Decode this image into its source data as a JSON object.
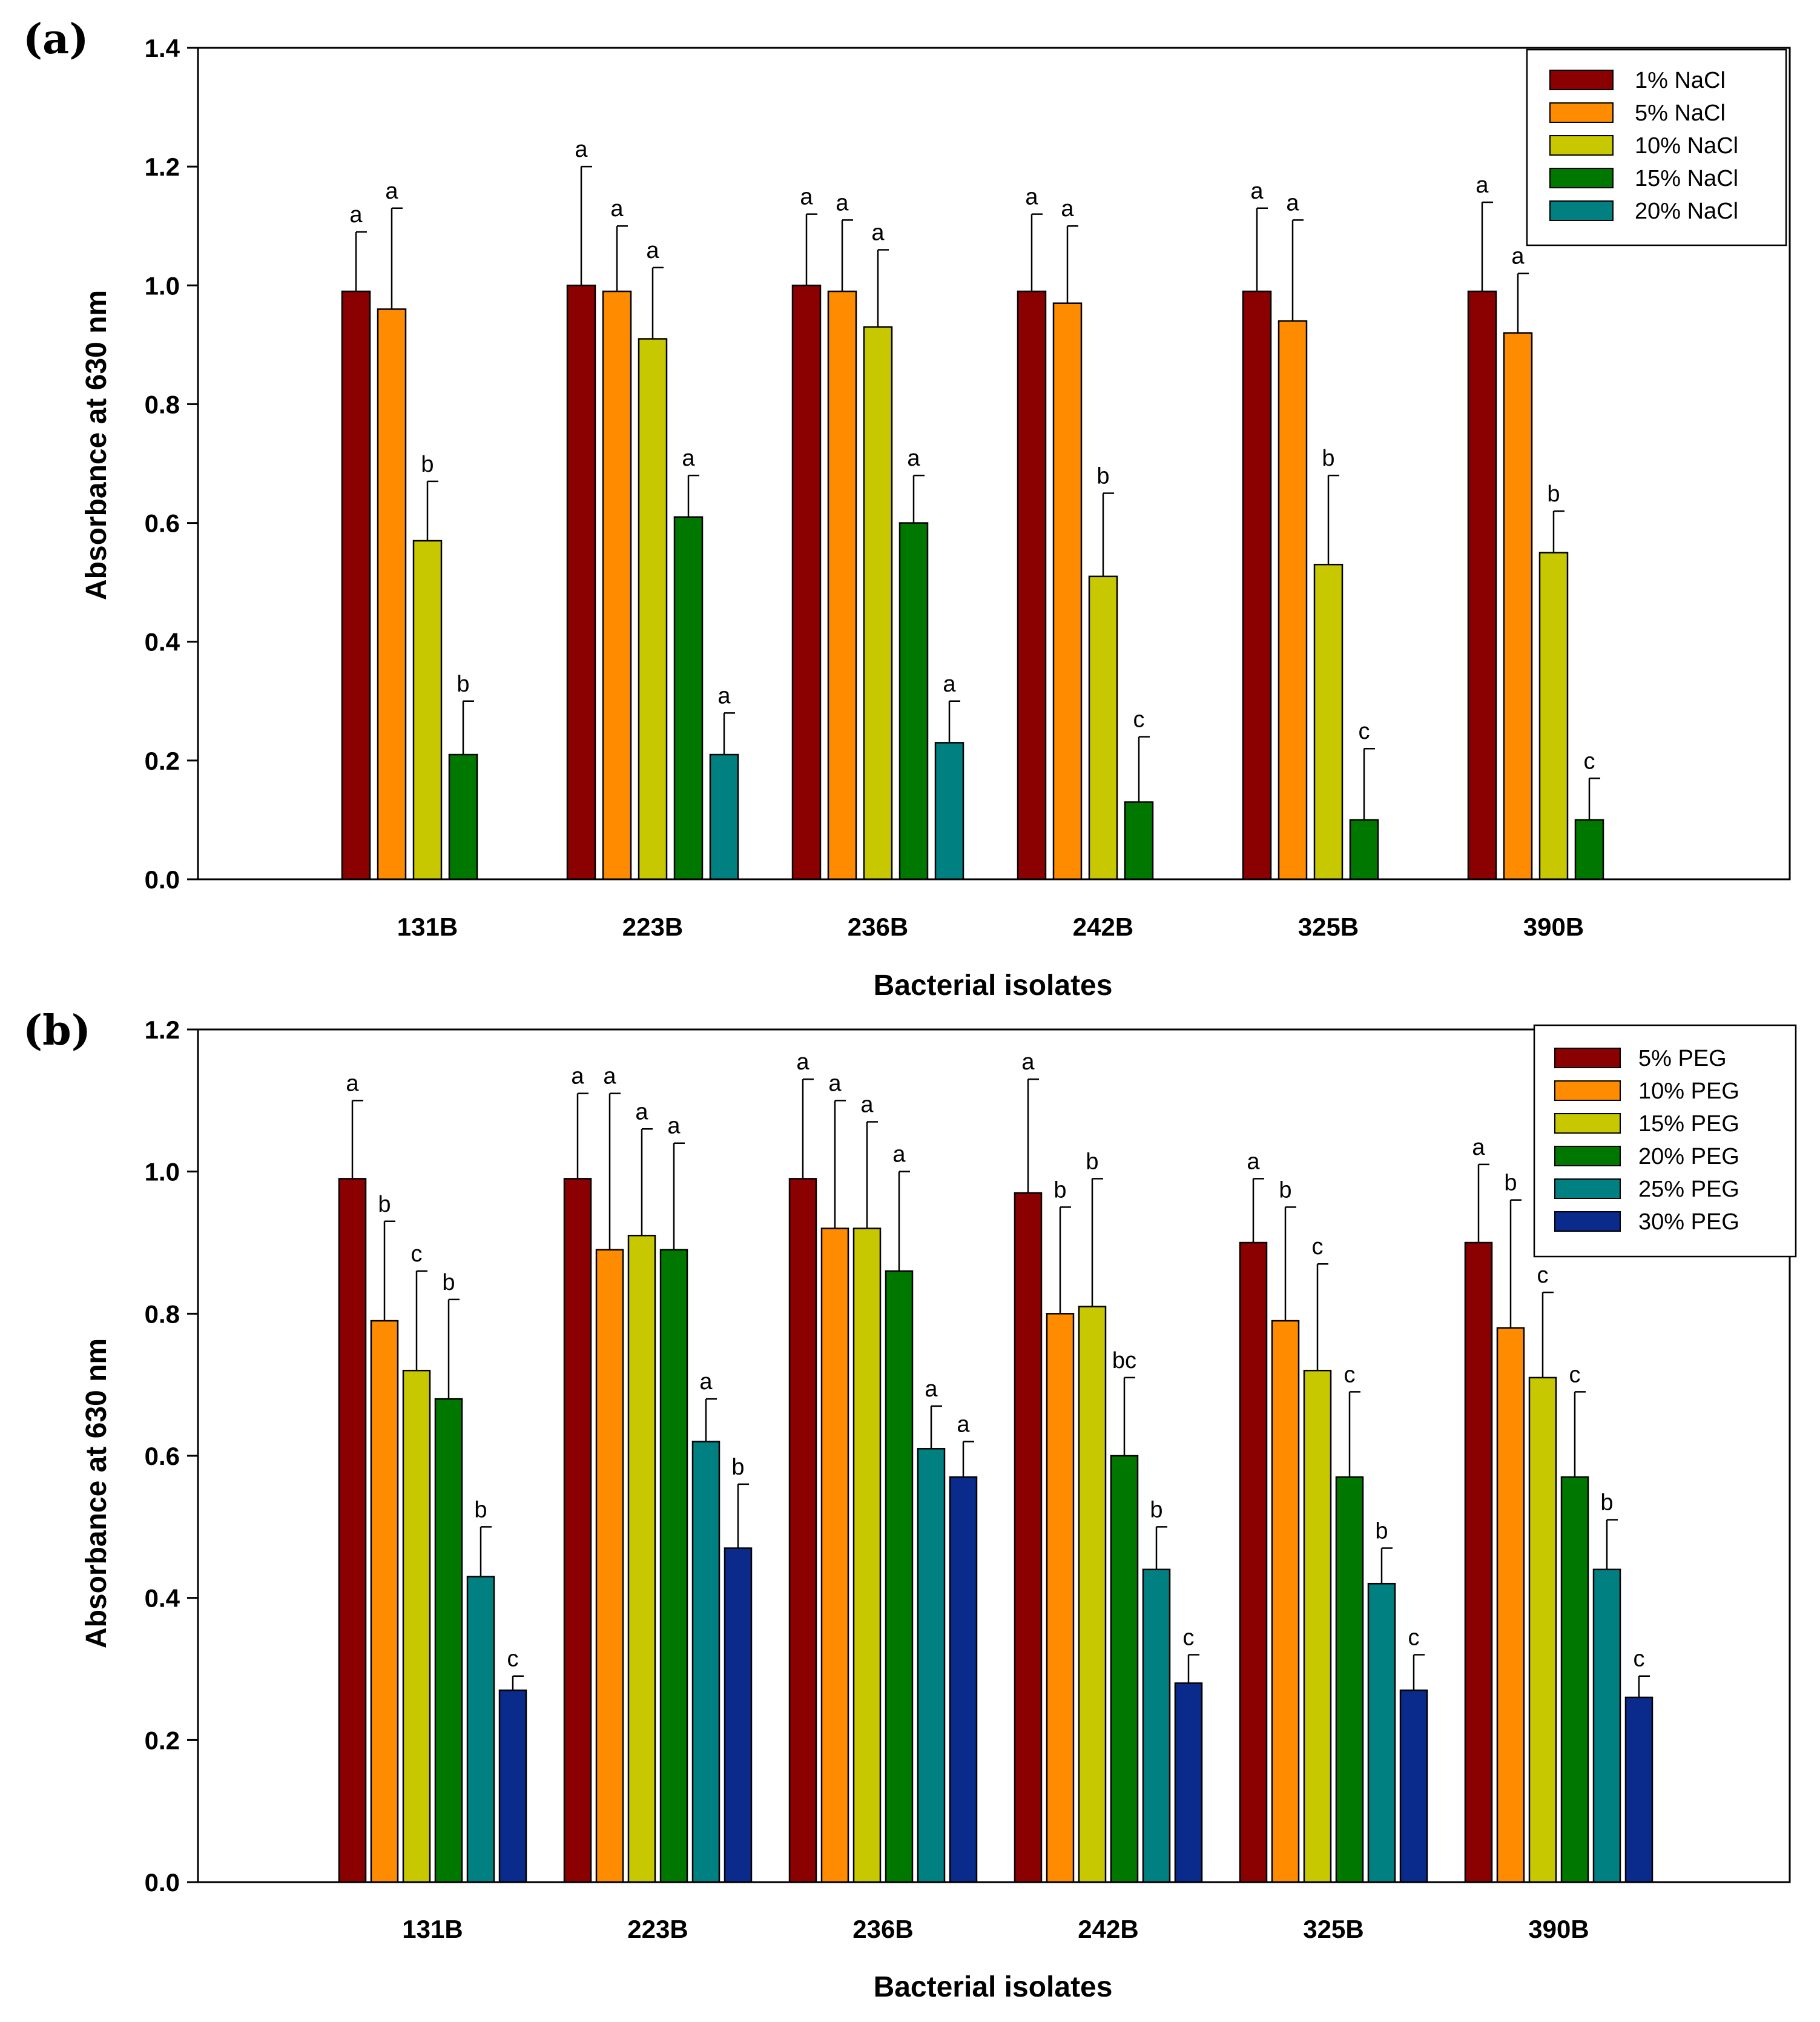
{
  "chart_data": [
    {
      "panel_label": "(a)",
      "type": "bar",
      "xlabel": "Bacterial isolates",
      "ylabel": "Absorbance at 630 nm",
      "ylim": [
        0,
        1.4
      ],
      "yticks": [
        "0.0",
        "0.2",
        "0.4",
        "0.6",
        "0.8",
        "1.0",
        "1.2",
        "1.4"
      ],
      "categories": [
        "131B",
        "223B",
        "236B",
        "242B",
        "325B",
        "390B"
      ],
      "legend_position": "top-right",
      "series": [
        {
          "name": "1% NaCl",
          "color": "#8B0000",
          "values": [
            0.99,
            1.0,
            1.0,
            0.99,
            0.99,
            0.99
          ],
          "errors": [
            0.1,
            0.2,
            0.12,
            0.13,
            0.14,
            0.15
          ],
          "letters": [
            "a",
            "a",
            "a",
            "a",
            "a",
            "a"
          ]
        },
        {
          "name": "5% NaCl",
          "color": "#FF8C00",
          "values": [
            0.96,
            0.99,
            0.99,
            0.97,
            0.94,
            0.92
          ],
          "errors": [
            0.17,
            0.11,
            0.12,
            0.13,
            0.17,
            0.1
          ],
          "letters": [
            "a",
            "a",
            "a",
            "a",
            "a",
            "a"
          ]
        },
        {
          "name": "10% NaCl",
          "color": "#C8C800",
          "values": [
            0.57,
            0.91,
            0.93,
            0.51,
            0.53,
            0.55
          ],
          "errors": [
            0.1,
            0.12,
            0.13,
            0.14,
            0.15,
            0.07
          ],
          "letters": [
            "b",
            "a",
            "a",
            "b",
            "b",
            "b"
          ]
        },
        {
          "name": "15% NaCl",
          "color": "#007800",
          "values": [
            0.21,
            0.61,
            0.6,
            0.13,
            0.1,
            0.1
          ],
          "errors": [
            0.09,
            0.07,
            0.08,
            0.11,
            0.12,
            0.07
          ],
          "letters": [
            "b",
            "a",
            "a",
            "c",
            "c",
            "c"
          ]
        },
        {
          "name": "20% NaCl",
          "color": "#008080",
          "values": [
            null,
            0.21,
            0.23,
            null,
            null,
            null
          ],
          "errors": [
            null,
            0.07,
            0.07,
            null,
            null,
            null
          ],
          "letters": [
            "",
            "a",
            "a",
            "",
            "",
            ""
          ]
        }
      ]
    },
    {
      "panel_label": "(b)",
      "type": "bar",
      "xlabel": "Bacterial isolates",
      "ylabel": "Absorbance at 630 nm",
      "ylim": [
        0,
        1.2
      ],
      "yticks": [
        "0.0",
        "0.2",
        "0.4",
        "0.6",
        "0.8",
        "1.0",
        "1.2"
      ],
      "categories": [
        "131B",
        "223B",
        "236B",
        "242B",
        "325B",
        "390B"
      ],
      "legend_position": "top-right",
      "series": [
        {
          "name": "5% PEG",
          "color": "#8B0000",
          "values": [
            0.99,
            0.99,
            0.99,
            0.97,
            0.9,
            0.9
          ],
          "errors": [
            0.11,
            0.12,
            0.14,
            0.16,
            0.09,
            0.11
          ],
          "letters": [
            "a",
            "a",
            "a",
            "a",
            "a",
            "a"
          ]
        },
        {
          "name": "10% PEG",
          "color": "#FF8C00",
          "values": [
            0.79,
            0.89,
            0.92,
            0.8,
            0.79,
            0.78
          ],
          "errors": [
            0.14,
            0.22,
            0.18,
            0.15,
            0.16,
            0.18
          ],
          "letters": [
            "b",
            "a",
            "a",
            "b",
            "b",
            "b"
          ]
        },
        {
          "name": "15% PEG",
          "color": "#C8C800",
          "values": [
            0.72,
            0.91,
            0.92,
            0.81,
            0.72,
            0.71
          ],
          "errors": [
            0.14,
            0.15,
            0.15,
            0.18,
            0.15,
            0.12
          ],
          "letters": [
            "c",
            "a",
            "a",
            "b",
            "c",
            "c"
          ]
        },
        {
          "name": "20% PEG",
          "color": "#007800",
          "values": [
            0.68,
            0.89,
            0.86,
            0.6,
            0.57,
            0.57
          ],
          "errors": [
            0.14,
            0.15,
            0.14,
            0.11,
            0.12,
            0.12
          ],
          "letters": [
            "b",
            "a",
            "a",
            "bc",
            "c",
            "c"
          ]
        },
        {
          "name": "25% PEG",
          "color": "#008080",
          "values": [
            0.43,
            0.62,
            0.61,
            0.44,
            0.42,
            0.44
          ],
          "errors": [
            0.07,
            0.06,
            0.06,
            0.06,
            0.05,
            0.07
          ],
          "letters": [
            "b",
            "a",
            "a",
            "b",
            "b",
            "b"
          ]
        },
        {
          "name": "30% PEG",
          "color": "#0A2A8C",
          "values": [
            0.27,
            0.47,
            0.57,
            0.28,
            0.27,
            0.26
          ],
          "errors": [
            0.02,
            0.09,
            0.05,
            0.04,
            0.05,
            0.03
          ],
          "letters": [
            "c",
            "b",
            "a",
            "c",
            "c",
            "c"
          ]
        }
      ]
    }
  ]
}
